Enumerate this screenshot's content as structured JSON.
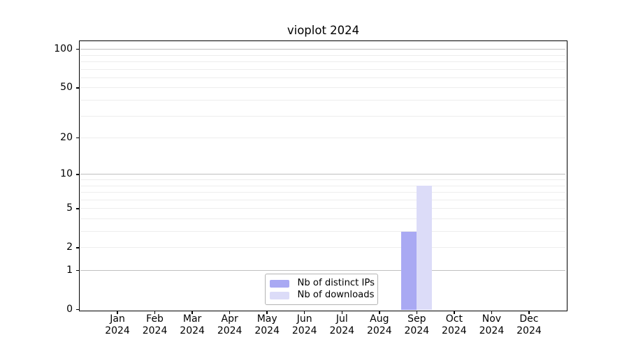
{
  "chart_data": {
    "type": "bar",
    "title": "vioplot 2024",
    "categories": [
      "Jan",
      "Feb",
      "Mar",
      "Apr",
      "May",
      "Jun",
      "Jul",
      "Aug",
      "Sep",
      "Oct",
      "Nov",
      "Dec"
    ],
    "category_year": "2024",
    "series": [
      {
        "name": "Nb of distinct IPs",
        "color": "#a9a9f3",
        "values": [
          0,
          0,
          0,
          0,
          0,
          0,
          0,
          0,
          3,
          0,
          0,
          0
        ]
      },
      {
        "name": "Nb of downloads",
        "color": "#dcdcf8",
        "values": [
          0,
          0,
          0,
          0,
          0,
          0,
          0,
          0,
          8,
          0,
          0,
          0
        ]
      }
    ],
    "yscale": "log1p",
    "ylim": [
      0,
      115
    ],
    "ytick_values": [
      0,
      1,
      2,
      5,
      10,
      20,
      50,
      100
    ],
    "ytick_labels": [
      "0",
      "1",
      "2",
      "5",
      "10",
      "20",
      "50",
      "100"
    ],
    "major_gridlines": [
      1,
      10,
      100
    ],
    "minor_gridlines": [
      2,
      3,
      4,
      5,
      6,
      7,
      8,
      9,
      20,
      30,
      40,
      50,
      60,
      70,
      80,
      90
    ],
    "legend": {
      "position": "inside-bottom-center"
    },
    "colors": {
      "background": "#ffffff",
      "axis": "#000000",
      "text": "#000000",
      "major_grid": "#c0c0c0",
      "minor_grid": "#ededed",
      "legend_border": "#b3b3b3",
      "bar_distinct_ips": "#a9a9f3",
      "bar_downloads": "#dcdcf8"
    }
  }
}
